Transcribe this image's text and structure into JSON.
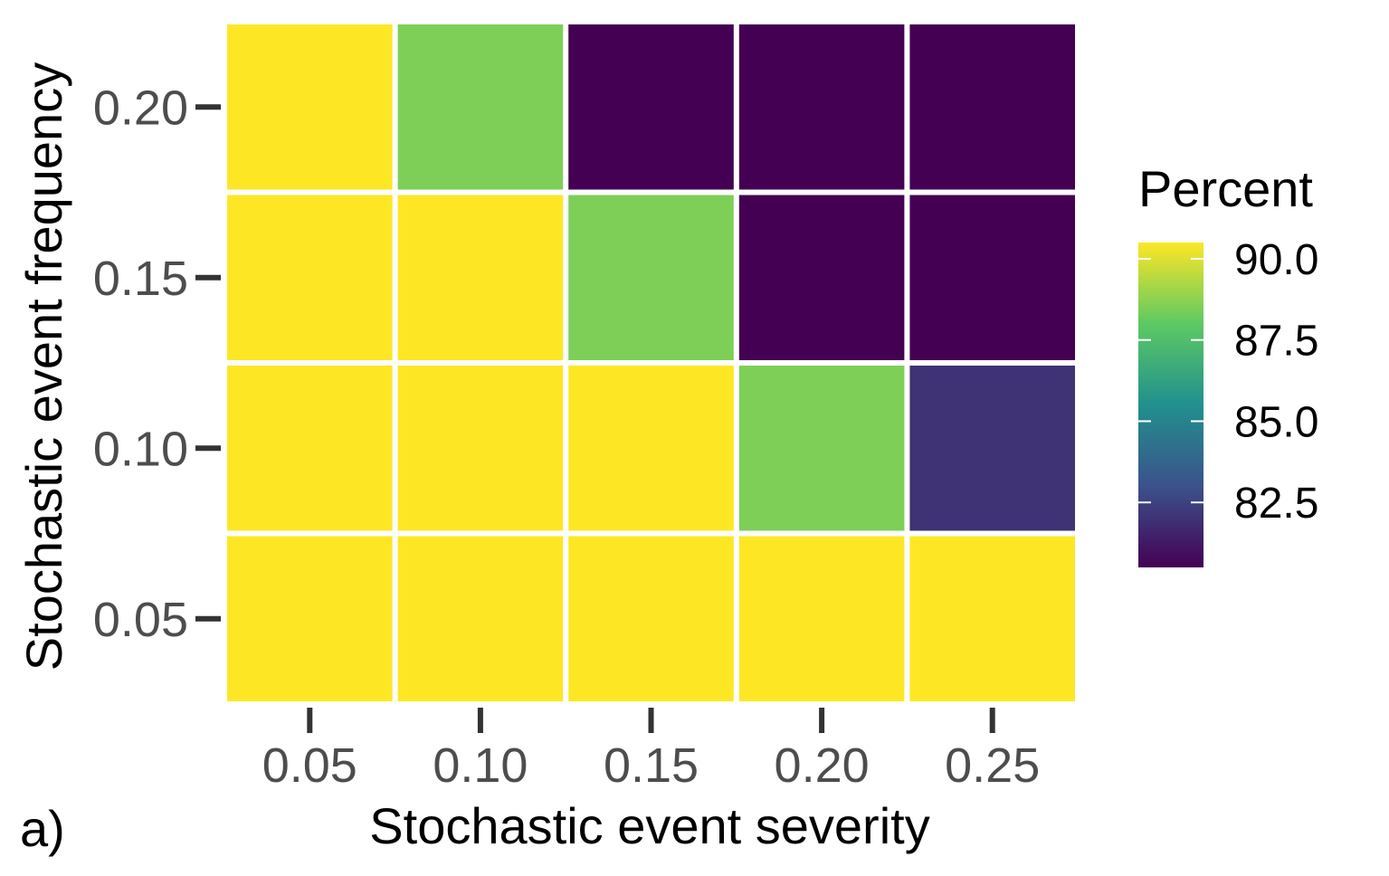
{
  "chart_data": {
    "type": "heatmap",
    "panel_label": "a)",
    "xlabel": "Stochastic event severity",
    "ylabel": "Stochastic event frequency",
    "x_categories": [
      "0.05",
      "0.10",
      "0.15",
      "0.20",
      "0.25"
    ],
    "y_categories": [
      "0.05",
      "0.10",
      "0.15",
      "0.20"
    ],
    "values": [
      [
        90.5,
        90.5,
        90.5,
        90.5,
        90.5
      ],
      [
        90.5,
        90.5,
        90.5,
        88.5,
        82.0
      ],
      [
        90.5,
        90.5,
        88.5,
        80.5,
        80.5
      ],
      [
        90.5,
        88.5,
        80.5,
        80.5,
        80.5
      ]
    ],
    "legend": {
      "title": "Percent",
      "labels": [
        "90.0",
        "87.5",
        "85.0",
        "82.5"
      ],
      "label_values": [
        90.0,
        87.5,
        85.0,
        82.5
      ],
      "range": [
        80.5,
        90.5
      ]
    },
    "palette": [
      "#440154",
      "#3b528b",
      "#21908d",
      "#5dc963",
      "#fde725"
    ]
  }
}
